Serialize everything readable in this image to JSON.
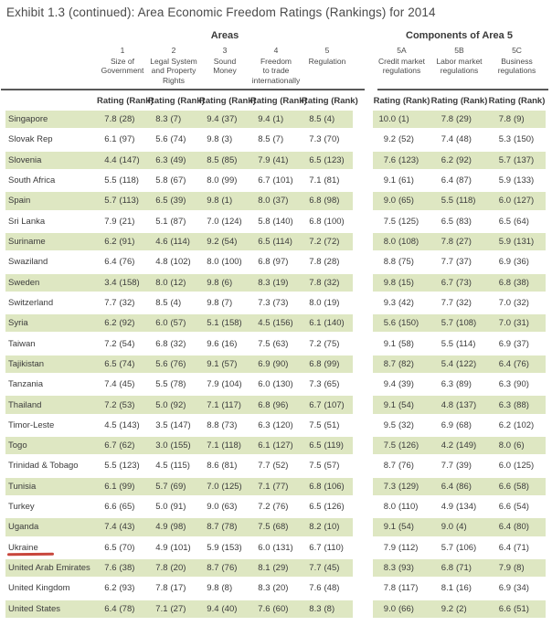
{
  "title": "Exhibit 1.3 (continued): Area Economic Freedom Ratings (Rankings) for 2014",
  "areas_header": "Areas",
  "components_header": "Components of Area 5",
  "rating_rank_label": "Rating (Rank)",
  "columns": {
    "areas": [
      {
        "number": "1",
        "lines": [
          "Size of",
          "Government"
        ]
      },
      {
        "number": "2",
        "lines": [
          "Legal System",
          "and Property",
          "Rights"
        ]
      },
      {
        "number": "3",
        "lines": [
          "Sound",
          "Money"
        ]
      },
      {
        "number": "4",
        "lines": [
          "Freedom",
          "to trade",
          "internationally"
        ]
      },
      {
        "number": "5",
        "lines": [
          "Regulation"
        ]
      }
    ],
    "components": [
      {
        "number": "5A",
        "lines": [
          "Credit market",
          "regulations"
        ]
      },
      {
        "number": "5B",
        "lines": [
          "Labor market",
          "regulations"
        ]
      },
      {
        "number": "5C",
        "lines": [
          "Business",
          "regulations"
        ]
      }
    ]
  },
  "rows": [
    {
      "country": "Singapore",
      "values": [
        "7.8 (28)",
        "8.3 (7)",
        "9.4 (37)",
        "9.4 (1)",
        "8.5 (4)",
        "10.0 (1)",
        "7.8 (29)",
        "7.8 (9)"
      ]
    },
    {
      "country": "Slovak Rep",
      "values": [
        "6.1 (97)",
        "5.6 (74)",
        "9.8 (3)",
        "8.5 (7)",
        "7.3 (70)",
        "9.2 (52)",
        "7.4 (48)",
        "5.3 (150)"
      ]
    },
    {
      "country": "Slovenia",
      "values": [
        "4.4 (147)",
        "6.3 (49)",
        "8.5 (85)",
        "7.9 (41)",
        "6.5 (123)",
        "7.6 (123)",
        "6.2 (92)",
        "5.7 (137)"
      ]
    },
    {
      "country": "South Africa",
      "values": [
        "5.5 (118)",
        "5.8 (67)",
        "8.0 (99)",
        "6.7 (101)",
        "7.1 (81)",
        "9.1 (61)",
        "6.4 (87)",
        "5.9 (133)"
      ]
    },
    {
      "country": "Spain",
      "values": [
        "5.7 (113)",
        "6.5 (39)",
        "9.8 (1)",
        "8.0 (37)",
        "6.8 (98)",
        "9.0 (65)",
        "5.5 (118)",
        "6.0 (127)"
      ]
    },
    {
      "country": "Sri Lanka",
      "values": [
        "7.9 (21)",
        "5.1 (87)",
        "7.0 (124)",
        "5.8 (140)",
        "6.8 (100)",
        "7.5 (125)",
        "6.5 (83)",
        "6.5 (64)"
      ]
    },
    {
      "country": "Suriname",
      "values": [
        "6.2 (91)",
        "4.6 (114)",
        "9.2 (54)",
        "6.5 (114)",
        "7.2 (72)",
        "8.0 (108)",
        "7.8 (27)",
        "5.9 (131)"
      ]
    },
    {
      "country": "Swaziland",
      "values": [
        "6.4 (76)",
        "4.8 (102)",
        "8.0 (100)",
        "6.8 (97)",
        "7.8 (28)",
        "8.8 (75)",
        "7.7 (37)",
        "6.9 (36)"
      ]
    },
    {
      "country": "Sweden",
      "values": [
        "3.4 (158)",
        "8.0 (12)",
        "9.8 (6)",
        "8.3 (19)",
        "7.8 (32)",
        "9.8 (15)",
        "6.7 (73)",
        "6.8 (38)"
      ]
    },
    {
      "country": "Switzerland",
      "values": [
        "7.7 (32)",
        "8.5 (4)",
        "9.8 (7)",
        "7.3 (73)",
        "8.0 (19)",
        "9.3 (42)",
        "7.7 (32)",
        "7.0 (32)"
      ]
    },
    {
      "country": "Syria",
      "values": [
        "6.2 (92)",
        "6.0 (57)",
        "5.1 (158)",
        "4.5 (156)",
        "6.1 (140)",
        "5.6 (150)",
        "5.7 (108)",
        "7.0 (31)"
      ]
    },
    {
      "country": "Taiwan",
      "values": [
        "7.2 (54)",
        "6.8 (32)",
        "9.6 (16)",
        "7.5 (63)",
        "7.2 (75)",
        "9.1 (58)",
        "5.5 (114)",
        "6.9 (37)"
      ]
    },
    {
      "country": "Tajikistan",
      "values": [
        "6.5 (74)",
        "5.6 (76)",
        "9.1 (57)",
        "6.9 (90)",
        "6.8 (99)",
        "8.7 (82)",
        "5.4 (122)",
        "6.4 (76)"
      ]
    },
    {
      "country": "Tanzania",
      "values": [
        "7.4 (45)",
        "5.5 (78)",
        "7.9 (104)",
        "6.0 (130)",
        "7.3 (65)",
        "9.4 (39)",
        "6.3 (89)",
        "6.3 (90)"
      ]
    },
    {
      "country": "Thailand",
      "values": [
        "7.2 (53)",
        "5.0 (92)",
        "7.1 (117)",
        "6.8 (96)",
        "6.7 (107)",
        "9.1 (54)",
        "4.8 (137)",
        "6.3 (88)"
      ]
    },
    {
      "country": "Timor-Leste",
      "values": [
        "4.5 (143)",
        "3.5 (147)",
        "8.8 (73)",
        "6.3 (120)",
        "7.5 (51)",
        "9.5 (32)",
        "6.9 (68)",
        "6.2 (102)"
      ]
    },
    {
      "country": "Togo",
      "values": [
        "6.7 (62)",
        "3.0 (155)",
        "7.1 (118)",
        "6.1 (127)",
        "6.5 (119)",
        "7.5 (126)",
        "4.2 (149)",
        "8.0 (6)"
      ]
    },
    {
      "country": "Trinidad & Tobago",
      "values": [
        "5.5 (123)",
        "4.5 (115)",
        "8.6 (81)",
        "7.7 (52)",
        "7.5 (57)",
        "8.7 (76)",
        "7.7 (39)",
        "6.0 (125)"
      ]
    },
    {
      "country": "Tunisia",
      "values": [
        "6.1 (99)",
        "5.7 (69)",
        "7.0 (125)",
        "7.1 (77)",
        "6.8 (106)",
        "7.3 (129)",
        "6.4 (86)",
        "6.6 (58)"
      ]
    },
    {
      "country": "Turkey",
      "values": [
        "6.6 (65)",
        "5.0 (91)",
        "9.0 (63)",
        "7.2 (76)",
        "6.5 (126)",
        "8.0 (110)",
        "4.9 (134)",
        "6.6 (54)"
      ]
    },
    {
      "country": "Uganda",
      "values": [
        "7.4 (43)",
        "4.9 (98)",
        "8.7 (78)",
        "7.5 (68)",
        "8.2 (10)",
        "9.1 (54)",
        "9.0 (4)",
        "6.4 (80)"
      ]
    },
    {
      "country": "Ukraine",
      "marked": true,
      "values": [
        "6.5 (70)",
        "4.9 (101)",
        "5.9 (153)",
        "6.0 (131)",
        "6.7 (110)",
        "7.9 (112)",
        "5.7 (106)",
        "6.4 (71)"
      ]
    },
    {
      "country": "United Arab Emirates",
      "values": [
        "7.6 (38)",
        "7.8 (20)",
        "8.7 (76)",
        "8.1 (29)",
        "7.7 (45)",
        "8.3 (93)",
        "6.8 (71)",
        "7.9 (8)"
      ]
    },
    {
      "country": "United Kingdom",
      "values": [
        "6.2 (93)",
        "7.8 (17)",
        "9.8 (8)",
        "8.3 (20)",
        "7.6 (48)",
        "7.8 (117)",
        "8.1 (16)",
        "6.9 (34)"
      ]
    },
    {
      "country": "United States",
      "values": [
        "6.4 (78)",
        "7.1 (27)",
        "9.4 (40)",
        "7.6 (60)",
        "8.3 (8)",
        "9.0 (66)",
        "9.2 (2)",
        "6.6 (51)"
      ]
    }
  ],
  "colors": {
    "row_shade": "#dee7c2",
    "rule": "#595959",
    "text": "#3b3b3b",
    "ukraine_mark": "#c8463c"
  }
}
